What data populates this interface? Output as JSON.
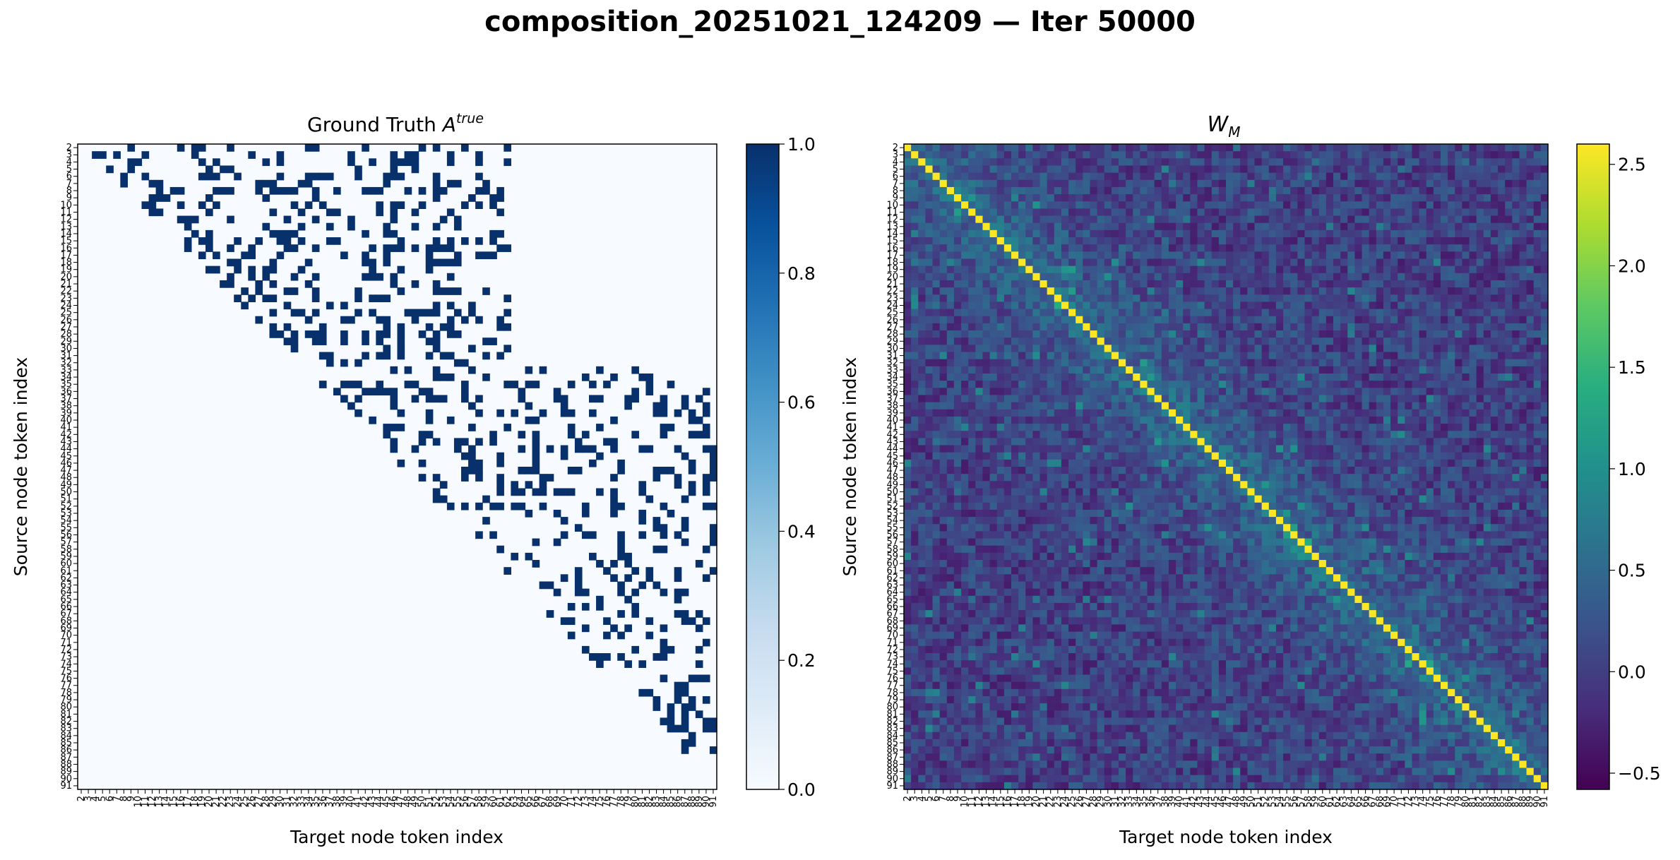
{
  "figure": {
    "title": "composition_20251021_124209 — Iter 50000"
  },
  "chart_data": [
    {
      "type": "heatmap",
      "title_base": "Ground Truth ",
      "title_var": "A",
      "title_sup": "true",
      "xlabel": "Target node token index",
      "ylabel": "Source node token index",
      "index_range": [
        2,
        91
      ],
      "colormap": "Blues",
      "colorbar_range": [
        0.0,
        1.0
      ],
      "colorbar_ticks": [
        "0.0",
        "0.2",
        "0.4",
        "0.6",
        "0.8",
        "1.0"
      ],
      "values": "binary 0/1 upper-triangular adjacency; block structure: source 2–32 → targets 2–62, source 33–86 → targets 33–91"
    },
    {
      "type": "heatmap",
      "title_var": "W",
      "title_sub": "M",
      "xlabel": "Target node token index",
      "ylabel": "Source node token index",
      "index_range": [
        2,
        91
      ],
      "colormap": "viridis",
      "colorbar_range": [
        -0.58,
        2.6
      ],
      "colorbar_ticks": [
        "−0.5",
        "0.0",
        "0.5",
        "1.0",
        "1.5",
        "2.0",
        "2.5"
      ],
      "values": "diagonal ≈ 2.6, off-diagonal mostly −0.5 to 0.9, higher near diagonal"
    }
  ],
  "colors": {
    "blues_low": "#f7fbff",
    "blues_high": "#08306b",
    "viridis_low": "#440154",
    "viridis_high": "#fde725"
  }
}
